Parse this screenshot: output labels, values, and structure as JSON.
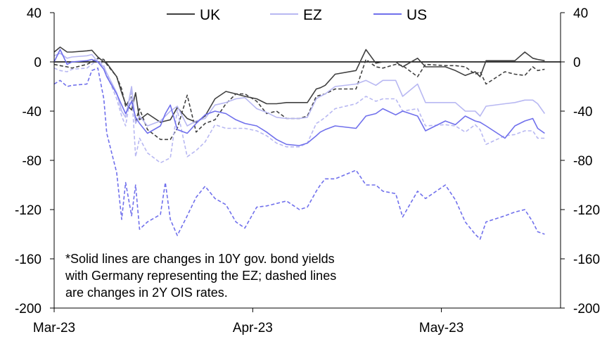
{
  "chart_data": {
    "type": "line",
    "title": "",
    "xlabel": "",
    "ylabel": "",
    "ylim": [
      -200,
      40
    ],
    "y_ticks": [
      40,
      0,
      -40,
      -80,
      -120,
      -160,
      -200
    ],
    "y_tick_labels": [
      "40",
      "0",
      "-40",
      "-80",
      "-120",
      "-160",
      "-200"
    ],
    "x_range": [
      0,
      51
    ],
    "x_ticks": [
      0,
      20,
      39
    ],
    "x_tick_labels": [
      "Mar-23",
      "Apr-23",
      "May-23"
    ],
    "legend_position": "top-center",
    "legend": [
      {
        "name": "UK",
        "color": "#404040"
      },
      {
        "name": "EZ",
        "color": "#b8b8f2"
      },
      {
        "name": "US",
        "color": "#7070ec"
      }
    ],
    "annotation": [
      "*Solid lines are changes in 10Y gov. bond yields",
      "with Germany representing the EZ; dashed lines",
      "are changes in 2Y OIS rates."
    ],
    "series": [
      {
        "name": "UK",
        "style": "solid",
        "color": "#404040",
        "x": [
          0,
          0.6,
          1.3,
          1.8,
          3.3,
          3.8,
          4.4,
          5,
          5.3,
          6.3,
          6.8,
          7.2,
          7.8,
          8.2,
          8.6,
          9.4,
          10.7,
          11.2,
          11.7,
          12.4,
          13.4,
          14.3,
          15.2,
          16.2,
          17.3,
          18.3,
          19.2,
          20.4,
          21.4,
          22.4,
          23.4,
          24.7,
          25.5,
          26.4,
          26.8,
          27.3,
          28.3,
          30.4,
          31.4,
          32.4,
          33.1,
          34.4,
          35.1,
          36.6,
          37.4,
          39.4,
          40.4,
          41.4,
          42.4,
          42.9,
          43.5,
          45.4,
          46.4,
          47.4,
          48.2,
          48.7,
          49.4
        ],
        "y": [
          8,
          12,
          8,
          8,
          9,
          9.5,
          4,
          0,
          -1,
          -12,
          -25,
          -34,
          -39,
          -25,
          -47,
          -42,
          -49,
          -48,
          -47,
          -37,
          -46,
          -49,
          -44,
          -30,
          -24,
          -26,
          -28,
          -30,
          -34,
          -34,
          -33,
          -33,
          -33,
          -22,
          -21,
          -19,
          -10,
          -7,
          10,
          -1,
          0,
          0,
          -4,
          3,
          -4,
          -4,
          -7,
          -11,
          -8,
          -12,
          1,
          1,
          1,
          8,
          3,
          2,
          1
        ]
      },
      {
        "name": "EZ",
        "style": "solid",
        "color": "#b8b8f2",
        "x": [
          0,
          0.6,
          1.3,
          1.8,
          3.3,
          3.8,
          4.4,
          5,
          5.3,
          6.3,
          6.8,
          7.2,
          7.8,
          8.2,
          8.6,
          9.4,
          10.7,
          11.2,
          11.7,
          12.4,
          13.4,
          14.3,
          15.2,
          16.2,
          17.3,
          18.3,
          19.2,
          20.4,
          21.4,
          22.4,
          23.4,
          24.7,
          25.5,
          26.4,
          26.8,
          27.3,
          28.3,
          30.4,
          31.4,
          32.4,
          33.1,
          34.4,
          35.1,
          36.6,
          37.4,
          39.4,
          40.4,
          41.4,
          42.4,
          42.9,
          43.5,
          45.4,
          46.4,
          47.4,
          48.2,
          48.7,
          49.4
        ],
        "y": [
          5,
          7,
          3,
          4,
          5,
          6,
          0,
          -4,
          -9,
          -25,
          -40,
          -45,
          -20,
          -50,
          -44,
          -52,
          -48,
          -44,
          -40,
          -36,
          -52,
          -48,
          -46,
          -35,
          -33,
          -30,
          -29,
          -38,
          -41,
          -45,
          -46,
          -46,
          -45,
          -30,
          -28,
          -26,
          -20,
          -18,
          -15,
          -19,
          -15,
          -15,
          -28,
          -18,
          -33,
          -33,
          -33,
          -40,
          -40,
          -44,
          -36,
          -34,
          -33,
          -31,
          -31,
          -34,
          -42
        ]
      },
      {
        "name": "US",
        "style": "solid",
        "color": "#7070ec",
        "x": [
          0,
          0.6,
          1.3,
          1.8,
          3.3,
          3.8,
          4.4,
          5,
          5.3,
          6.3,
          6.8,
          7.2,
          7.8,
          8.2,
          8.6,
          9.4,
          10.7,
          11.2,
          11.7,
          12.4,
          13.4,
          14.3,
          15.2,
          16.2,
          17.3,
          18.3,
          19.2,
          20.4,
          21.4,
          22.4,
          23.4,
          24.7,
          25.5,
          26.4,
          26.8,
          27.3,
          28.3,
          30.4,
          31.4,
          32.4,
          33.1,
          34.4,
          35.1,
          36.6,
          37.4,
          39.4,
          40.4,
          41.4,
          42.4,
          42.9,
          43.5,
          45.4,
          46.4,
          47.4,
          48.2,
          48.7,
          49.4
        ],
        "y": [
          0,
          10,
          -2,
          0,
          1,
          2,
          0,
          -6,
          -12,
          -26,
          -35,
          -42,
          -32,
          -45,
          -50,
          -58,
          -52,
          -42,
          -35,
          -55,
          -58,
          -50,
          -43,
          -40,
          -42,
          -47,
          -50,
          -52,
          -57,
          -63,
          -67,
          -68,
          -66,
          -60,
          -57,
          -55,
          -52,
          -54,
          -44,
          -42,
          -38,
          -43,
          -40,
          -44,
          -56,
          -48,
          -51,
          -44,
          -48,
          -49,
          -52,
          -62,
          -52,
          -48,
          -46,
          -54,
          -58
        ]
      },
      {
        "name": "UK",
        "style": "dashed",
        "color": "#404040",
        "x": [
          0,
          0.6,
          1.3,
          1.8,
          3.3,
          3.8,
          4.4,
          5,
          5.3,
          6.3,
          6.8,
          7.2,
          7.8,
          8.2,
          8.6,
          9.4,
          10.7,
          11.2,
          11.7,
          12.4,
          13.4,
          14.3,
          15.2,
          16.2,
          17.3,
          18.3,
          19.2,
          20.4,
          21.4,
          22.4,
          23.4,
          24.7,
          25.5,
          26.4,
          26.8,
          27.3,
          28.3,
          30.4,
          31.4,
          32.4,
          33.1,
          34.4,
          35.1,
          36.6,
          37.4,
          39.4,
          40.4,
          41.4,
          42.4,
          42.9,
          43.5,
          45.4,
          46.4,
          47.4,
          48.2,
          48.7,
          49.4
        ],
        "y": [
          -2,
          -3,
          -4,
          -5,
          -2,
          0,
          3,
          2,
          -2,
          -12,
          -22,
          -36,
          -28,
          -48,
          -38,
          -55,
          -63,
          -63,
          -63,
          -54,
          -27,
          -57,
          -50,
          -47,
          -34,
          -26,
          -26,
          -32,
          -42,
          -40,
          -46,
          -46,
          -44,
          -28,
          -27,
          -26,
          -22,
          -22,
          2,
          -4,
          -5,
          -2,
          -3,
          -12,
          -2,
          -3,
          -3,
          -4,
          -10,
          -8,
          -18,
          -8,
          -10,
          -11,
          -4,
          -7,
          -6
        ]
      },
      {
        "name": "EZ",
        "style": "dashed",
        "color": "#b8b8f2",
        "x": [
          0,
          0.6,
          1.3,
          1.8,
          3.3,
          3.8,
          4.4,
          5,
          5.3,
          6.3,
          6.8,
          7.2,
          7.8,
          8.2,
          8.6,
          9.4,
          10.7,
          11.2,
          11.7,
          12.4,
          13.4,
          14.3,
          15.2,
          16.2,
          17.3,
          18.3,
          19.2,
          20.4,
          21.4,
          22.4,
          23.4,
          24.7,
          25.5,
          26.4,
          26.8,
          27.3,
          28.3,
          30.4,
          31.4,
          32.4,
          33.1,
          34.4,
          35.1,
          36.6,
          37.4,
          39.4,
          40.4,
          41.4,
          42.4,
          42.9,
          43.5,
          45.4,
          46.4,
          47.4,
          48.2,
          48.7,
          49.4
        ],
        "y": [
          -5,
          -7,
          -8,
          -6,
          -5,
          -2,
          2,
          -3,
          -10,
          -30,
          -44,
          -52,
          -23,
          -77,
          -62,
          -74,
          -82,
          -80,
          -78,
          -39,
          -77,
          -72,
          -65,
          -51,
          -54,
          -54,
          -54,
          -56,
          -60,
          -66,
          -69,
          -69,
          -66,
          -50,
          -48,
          -45,
          -38,
          -34,
          -28,
          -32,
          -30,
          -30,
          -40,
          -38,
          -52,
          -51,
          -52,
          -57,
          -51,
          -55,
          -67,
          -60,
          -59,
          -56,
          -56,
          -62,
          -62
        ]
      },
      {
        "name": "US",
        "style": "dashed",
        "color": "#7070ec",
        "x": [
          0,
          0.6,
          1.3,
          1.8,
          3.3,
          3.8,
          4.4,
          5,
          5.3,
          6.3,
          6.8,
          7.2,
          7.8,
          8.2,
          8.6,
          9.4,
          10.7,
          11.2,
          11.7,
          12.4,
          13.4,
          14.3,
          15.2,
          16.2,
          17.3,
          18.3,
          19.2,
          20.4,
          21.4,
          22.4,
          23.4,
          24.7,
          25.5,
          26.4,
          26.8,
          27.3,
          28.3,
          30.4,
          31.4,
          32.4,
          33.1,
          34.4,
          35.1,
          36.6,
          37.4,
          39.4,
          40.4,
          41.4,
          42.4,
          42.9,
          43.5,
          45.4,
          46.4,
          47.4,
          48.2,
          48.7,
          49.4
        ],
        "y": [
          -18,
          -15,
          -20,
          -19,
          -18,
          -7,
          -5,
          -30,
          -58,
          -90,
          -128,
          -98,
          -125,
          -100,
          -136,
          -130,
          -124,
          -98,
          -128,
          -141,
          -125,
          -110,
          -101,
          -111,
          -116,
          -130,
          -135,
          -118,
          -117,
          -115,
          -113,
          -120,
          -118,
          -105,
          -100,
          -95,
          -95,
          -88,
          -100,
          -100,
          -105,
          -107,
          -126,
          -105,
          -111,
          -100,
          -112,
          -130,
          -140,
          -144,
          -130,
          -125,
          -122,
          -120,
          -130,
          -138,
          -140
        ]
      }
    ]
  }
}
